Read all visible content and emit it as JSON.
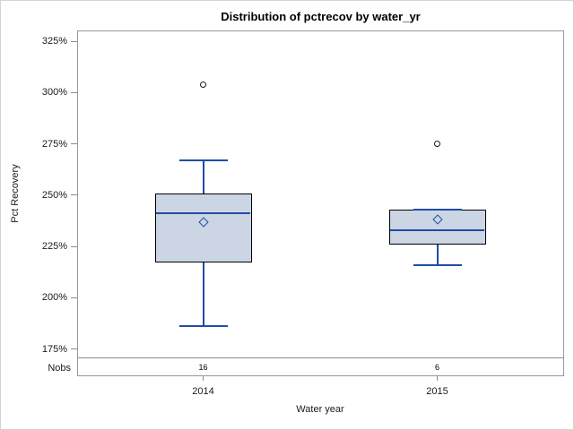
{
  "title": "Distribution of pctrecov by water_yr",
  "y_axis": {
    "label": "Pct Recovery",
    "tick_labels": [
      "325%",
      "300%",
      "275%",
      "250%",
      "225%",
      "200%",
      "175%"
    ]
  },
  "x_axis": {
    "label": "Water year",
    "categories": [
      "2014",
      "2015"
    ]
  },
  "nobs_row": {
    "label": "Nobs",
    "values": [
      16,
      6
    ]
  },
  "colors": {
    "box_fill": "#ccd5e3",
    "box_border": "#000000",
    "line_blue": "#1f4da6",
    "frame_gray": "#999999",
    "outlier_stroke": "#1a1a1a"
  },
  "chart_data": {
    "type": "boxplot",
    "title": "Distribution of pctrecov by water_yr",
    "xlabel": "Water year",
    "ylabel": "Pct Recovery",
    "y_tick_values": [
      325,
      300,
      275,
      250,
      225,
      200,
      175
    ],
    "y_tick_labels": [
      "325%",
      "300%",
      "275%",
      "250%",
      "225%",
      "200%",
      "175%"
    ],
    "ylim": [
      170,
      330
    ],
    "grid": false,
    "legend": false,
    "categories": [
      "2014",
      "2015"
    ],
    "groups": [
      {
        "category": "2014",
        "nobs": 16,
        "min": 186,
        "q1": 217,
        "median": 241,
        "mean": 237,
        "q3": 251,
        "max": 267,
        "outliers": [
          304
        ]
      },
      {
        "category": "2015",
        "nobs": 6,
        "min": 216,
        "q1": 226,
        "median": 233,
        "mean": 238,
        "q3": 243,
        "max": 243,
        "outliers": [
          275
        ]
      }
    ]
  }
}
